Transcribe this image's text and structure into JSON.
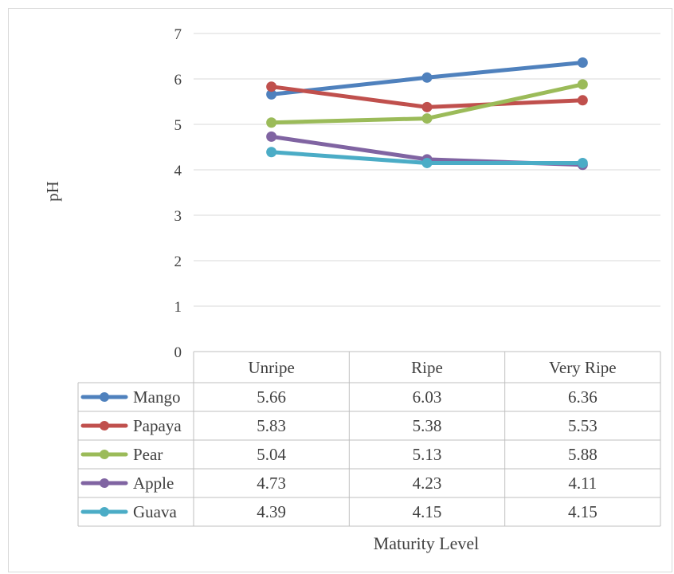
{
  "chart_data": {
    "type": "line",
    "title": "",
    "xlabel": "Maturity Level",
    "ylabel": "pH",
    "categories": [
      "Unripe",
      "Ripe",
      "Very Ripe"
    ],
    "ylim": [
      0,
      7
    ],
    "yticks": [
      0,
      1,
      2,
      3,
      4,
      5,
      6,
      7
    ],
    "grid": true,
    "legend": "data-table",
    "series": [
      {
        "name": "Mango",
        "color": "#4f81bd",
        "values": [
          5.66,
          6.03,
          6.36
        ],
        "labels": [
          "5.66",
          "6.03",
          "6.36"
        ]
      },
      {
        "name": "Papaya",
        "color": "#c0504d",
        "values": [
          5.83,
          5.38,
          5.53
        ],
        "labels": [
          "5.83",
          "5.38",
          "5.53"
        ]
      },
      {
        "name": "Pear",
        "color": "#9bbb59",
        "values": [
          5.04,
          5.13,
          5.88
        ],
        "labels": [
          "5.04",
          "5.13",
          "5.88"
        ]
      },
      {
        "name": "Apple",
        "color": "#8064a2",
        "values": [
          4.73,
          4.23,
          4.11
        ],
        "labels": [
          "4.73",
          "4.23",
          "4.11"
        ]
      },
      {
        "name": "Guava",
        "color": "#4bacc6",
        "values": [
          4.39,
          4.15,
          4.15
        ],
        "labels": [
          "4.39",
          "4.15",
          "4.15"
        ]
      }
    ]
  }
}
